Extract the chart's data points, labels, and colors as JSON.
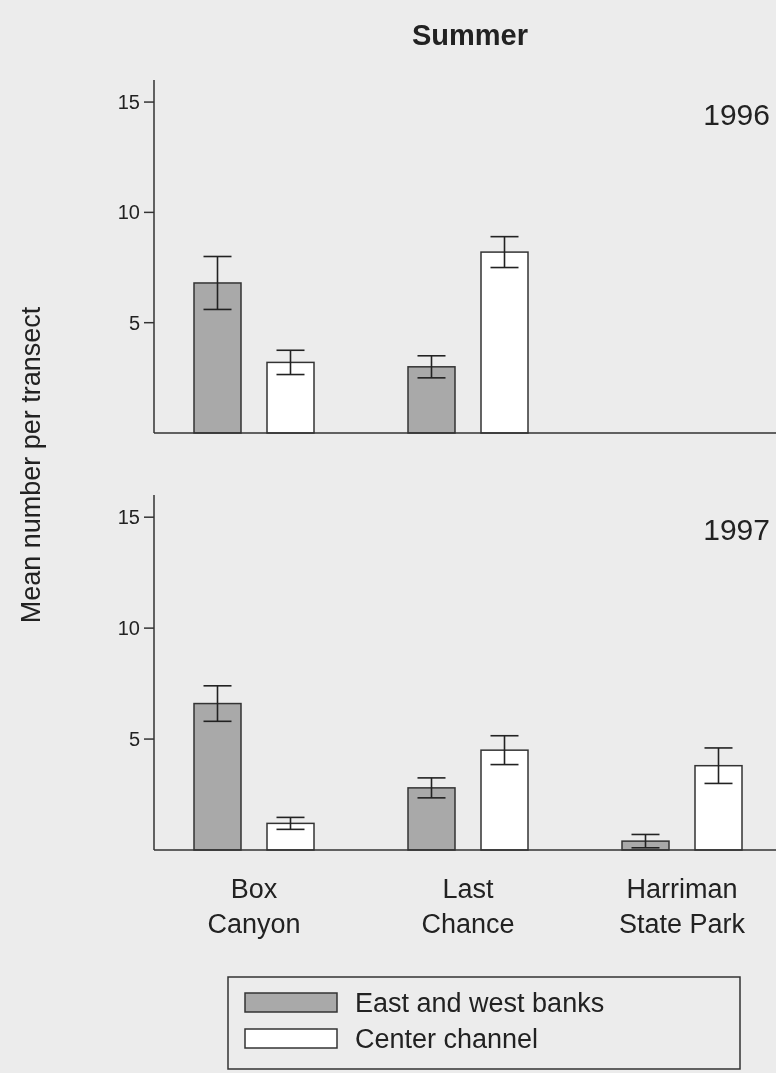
{
  "chart_data": [
    {
      "type": "bar",
      "title": "Summer",
      "ylabel": "Mean number per transect",
      "annotations": [
        "1996"
      ],
      "tick_labels": "y",
      "ylim": [
        0,
        16
      ],
      "yticks": [
        5,
        10,
        15
      ],
      "grid": false,
      "series": [
        {
          "color": "#a9a9a9",
          "values": [
            6.8,
            3.0,
            null
          ],
          "errors": [
            1.2,
            0.5,
            null
          ]
        },
        {
          "color": "#ffffff",
          "values": [
            3.2,
            8.2,
            null
          ],
          "errors": [
            0.55,
            0.7,
            null
          ]
        }
      ]
    },
    {
      "type": "bar",
      "annotations": [
        "1997"
      ],
      "categories": [
        "Box\nCanyon",
        "Last\nChance",
        "Harriman\nState Park"
      ],
      "ylim": [
        0,
        16
      ],
      "yticks": [
        5,
        10,
        15
      ],
      "grid": false,
      "legend": "bottom",
      "series": [
        {
          "name": "East and west banks",
          "color": "#a9a9a9",
          "values": [
            6.6,
            2.8,
            0.4
          ],
          "errors": [
            0.8,
            0.45,
            0.3
          ]
        },
        {
          "name": "Center channel",
          "color": "#ffffff",
          "values": [
            1.2,
            4.5,
            3.8
          ],
          "errors": [
            0.27,
            0.65,
            0.8
          ]
        }
      ]
    }
  ]
}
